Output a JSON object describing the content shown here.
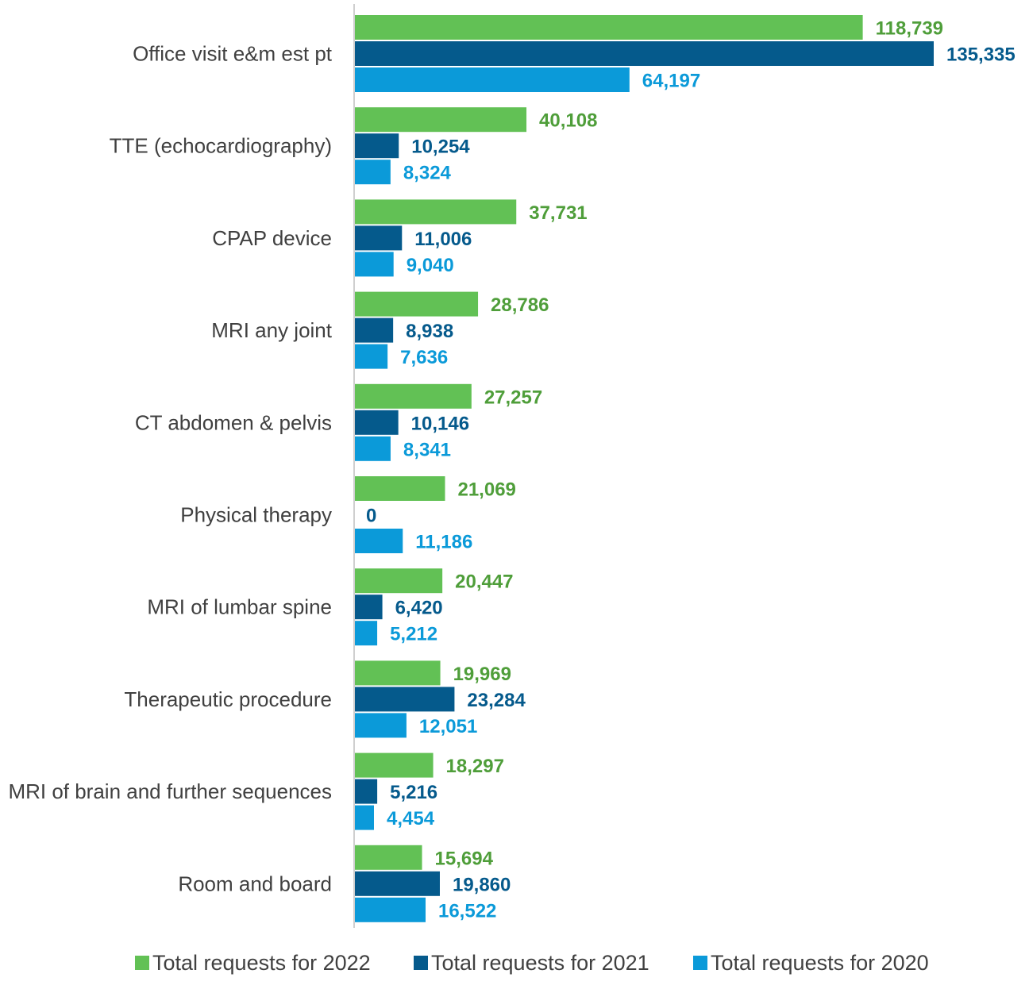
{
  "chart_data": {
    "type": "bar",
    "orientation": "horizontal",
    "categories": [
      "Office visit e&m est pt",
      "TTE (echocardiography)",
      "CPAP device",
      "MRI any joint",
      "CT abdomen & pelvis",
      "Physical therapy",
      "MRI of lumbar spine",
      "Therapeutic procedure",
      "MRI of brain and further sequences",
      "Room and board"
    ],
    "series": [
      {
        "name": "Total requests for 2022",
        "color": "#62c155",
        "label_color": "#4f9e3a",
        "values": [
          118739,
          40108,
          37731,
          28786,
          27257,
          21069,
          20447,
          19969,
          18297,
          15694
        ],
        "labels": [
          "118,739",
          "40,108",
          "37,731",
          "28,786",
          "27,257",
          "21,069",
          "20,447",
          "19,969",
          "18,297",
          "15,694"
        ]
      },
      {
        "name": "Total requests for 2021",
        "color": "#055a8c",
        "label_color": "#055a8c",
        "values": [
          135335,
          10254,
          11006,
          8938,
          10146,
          0,
          6420,
          23284,
          5216,
          19860
        ],
        "labels": [
          "135,335",
          "10,254",
          "11,006",
          "8,938",
          "10,146",
          "0",
          "6,420",
          "23,284",
          "5,216",
          "19,860"
        ]
      },
      {
        "name": "Total requests for 2020",
        "color": "#0b9ad9",
        "label_color": "#0b9ad9",
        "values": [
          64197,
          8324,
          9040,
          7636,
          8341,
          11186,
          5212,
          12051,
          4454,
          16522
        ],
        "labels": [
          "64,197",
          "8,324",
          "9,040",
          "7,636",
          "8,341",
          "11,186",
          "5,212",
          "12,051",
          "4,454",
          "16,522"
        ]
      }
    ],
    "xlim": [
      0,
      135335
    ],
    "grid": false,
    "legend_position": "bottom",
    "data_labels": true
  }
}
